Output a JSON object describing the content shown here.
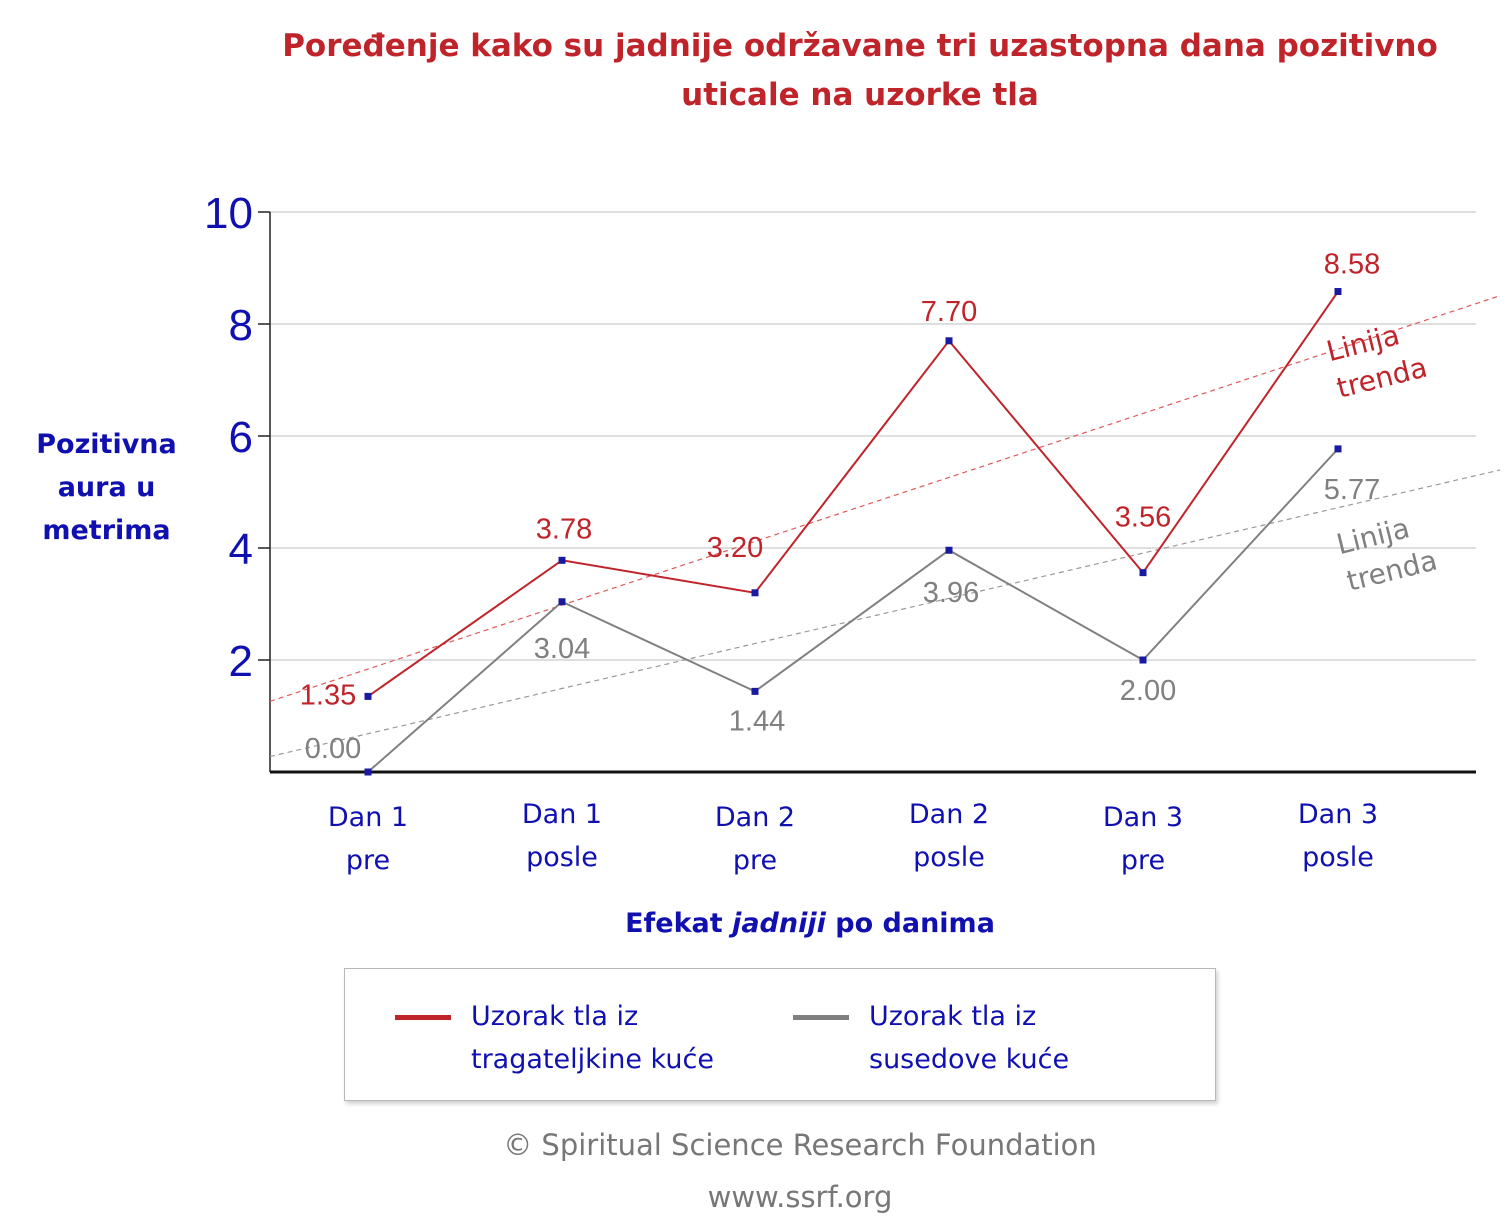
{
  "chart_data": {
    "type": "line",
    "title": "Poređenje kako su jadnije održavane tri uzastopna dana pozitivno uticale na uzorke tla",
    "ylabel": "Pozitivna aura u metrima",
    "xlabel_parts": [
      "Efekat ",
      "jadniji",
      " po danima"
    ],
    "ylim": [
      0,
      10
    ],
    "yticks": [
      2,
      4,
      6,
      8,
      10
    ],
    "categories": [
      "Dan 1 pre",
      "Dan 1 posle",
      "Dan 2 pre",
      "Dan 2 posle",
      "Dan 3 pre",
      "Dan 3 posle"
    ],
    "category_lines": [
      [
        "Dan 1",
        "pre"
      ],
      [
        "Dan 1",
        "posle"
      ],
      [
        "Dan 2",
        "pre"
      ],
      [
        "Dan 2",
        "posle"
      ],
      [
        "Dan 3",
        "pre"
      ],
      [
        "Dan 3",
        "posle"
      ]
    ],
    "series": [
      {
        "name": "Uzorak tla iz tragateljkine kuće",
        "color": "#c0242b",
        "values": [
          1.35,
          3.78,
          3.2,
          7.7,
          3.56,
          8.58
        ],
        "labels": [
          "1.35",
          "3.78",
          "3.20",
          "7.70",
          "3.56",
          "8.58"
        ],
        "trend_label": [
          "Linija",
          "trenda"
        ]
      },
      {
        "name": "Uzorak tla iz susedove kuće",
        "color": "#808080",
        "values": [
          0.0,
          3.04,
          1.44,
          3.96,
          2.0,
          5.77
        ],
        "labels": [
          "0.00",
          "3.04",
          "1.44",
          "3.96",
          "2.00",
          "5.77"
        ],
        "trend_label": [
          "Linija",
          "trenda"
        ]
      }
    ],
    "grid": true,
    "legend_position": "bottom",
    "marker_color": "#1a1aa0",
    "axis_text_color": "#1010b0"
  },
  "legend": {
    "item1": [
      "Uzorak tla iz",
      "tragateljkine kuće"
    ],
    "item2": [
      "Uzorak tla iz",
      "susedove kuće"
    ]
  },
  "credit": {
    "copyright": "© Spiritual Science Research Foundation",
    "url": "www.ssrf.org"
  }
}
